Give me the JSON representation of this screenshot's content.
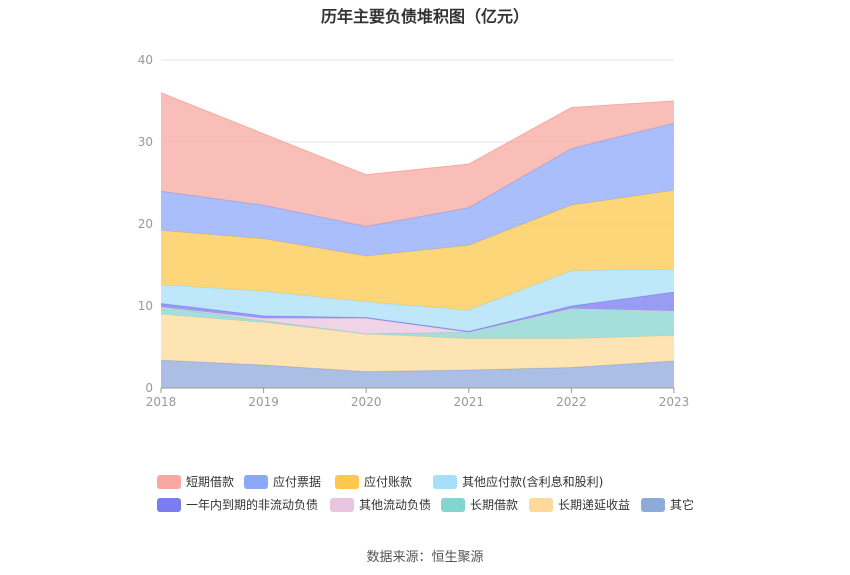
{
  "title": "历年主要负债堆积图（亿元）",
  "source": "数据来源：恒生聚源",
  "chart_data": {
    "type": "area",
    "stacked": true,
    "x": [
      "2018",
      "2019",
      "2020",
      "2021",
      "2022",
      "2023"
    ],
    "ylim": [
      0,
      40
    ],
    "yticks": [
      "0",
      "10",
      "20",
      "30",
      "40"
    ],
    "grid": true,
    "legend_position": "bottom",
    "series": [
      {
        "name": "其它",
        "color": "#8eaad9",
        "values": [
          3.4,
          2.8,
          2.0,
          2.2,
          2.5,
          3.3
        ]
      },
      {
        "name": "长期递延收益",
        "color": "#fdd99a",
        "values": [
          5.6,
          5.2,
          4.6,
          3.8,
          3.5,
          3.1
        ]
      },
      {
        "name": "长期借款",
        "color": "#86d4d0",
        "values": [
          0.9,
          0.2,
          0.0,
          0.8,
          3.7,
          3.0
        ]
      },
      {
        "name": "其他流动负债",
        "color": "#eac5df",
        "values": [
          0.0,
          0.3,
          1.9,
          0.0,
          0.0,
          0.0
        ]
      },
      {
        "name": "一年内到期的非流动负债",
        "color": "#7a7cf0",
        "values": [
          0.4,
          0.3,
          0.1,
          0.1,
          0.3,
          2.3
        ]
      },
      {
        "name": "其他应付款(含利息和股利)",
        "color": "#a8dff8",
        "values": [
          2.3,
          3.0,
          1.9,
          2.6,
          4.3,
          2.8
        ]
      },
      {
        "name": "应付账款",
        "color": "#fec84e",
        "values": [
          6.6,
          6.4,
          5.6,
          7.9,
          8.0,
          9.6
        ]
      },
      {
        "name": "应付票据",
        "color": "#8ca8f8",
        "values": [
          4.8,
          4.1,
          3.6,
          4.6,
          6.9,
          8.2
        ]
      },
      {
        "name": "短期借款",
        "color": "#f8a8a0",
        "values": [
          12.0,
          8.7,
          6.3,
          5.3,
          5.0,
          2.7
        ]
      }
    ],
    "legend_order": [
      "短期借款",
      "应付票据",
      "应付账款",
      "其他应付款(含利息和股利)",
      "一年内到期的非流动负债",
      "其他流动负债",
      "长期借款",
      "长期递延收益",
      "其它"
    ]
  }
}
